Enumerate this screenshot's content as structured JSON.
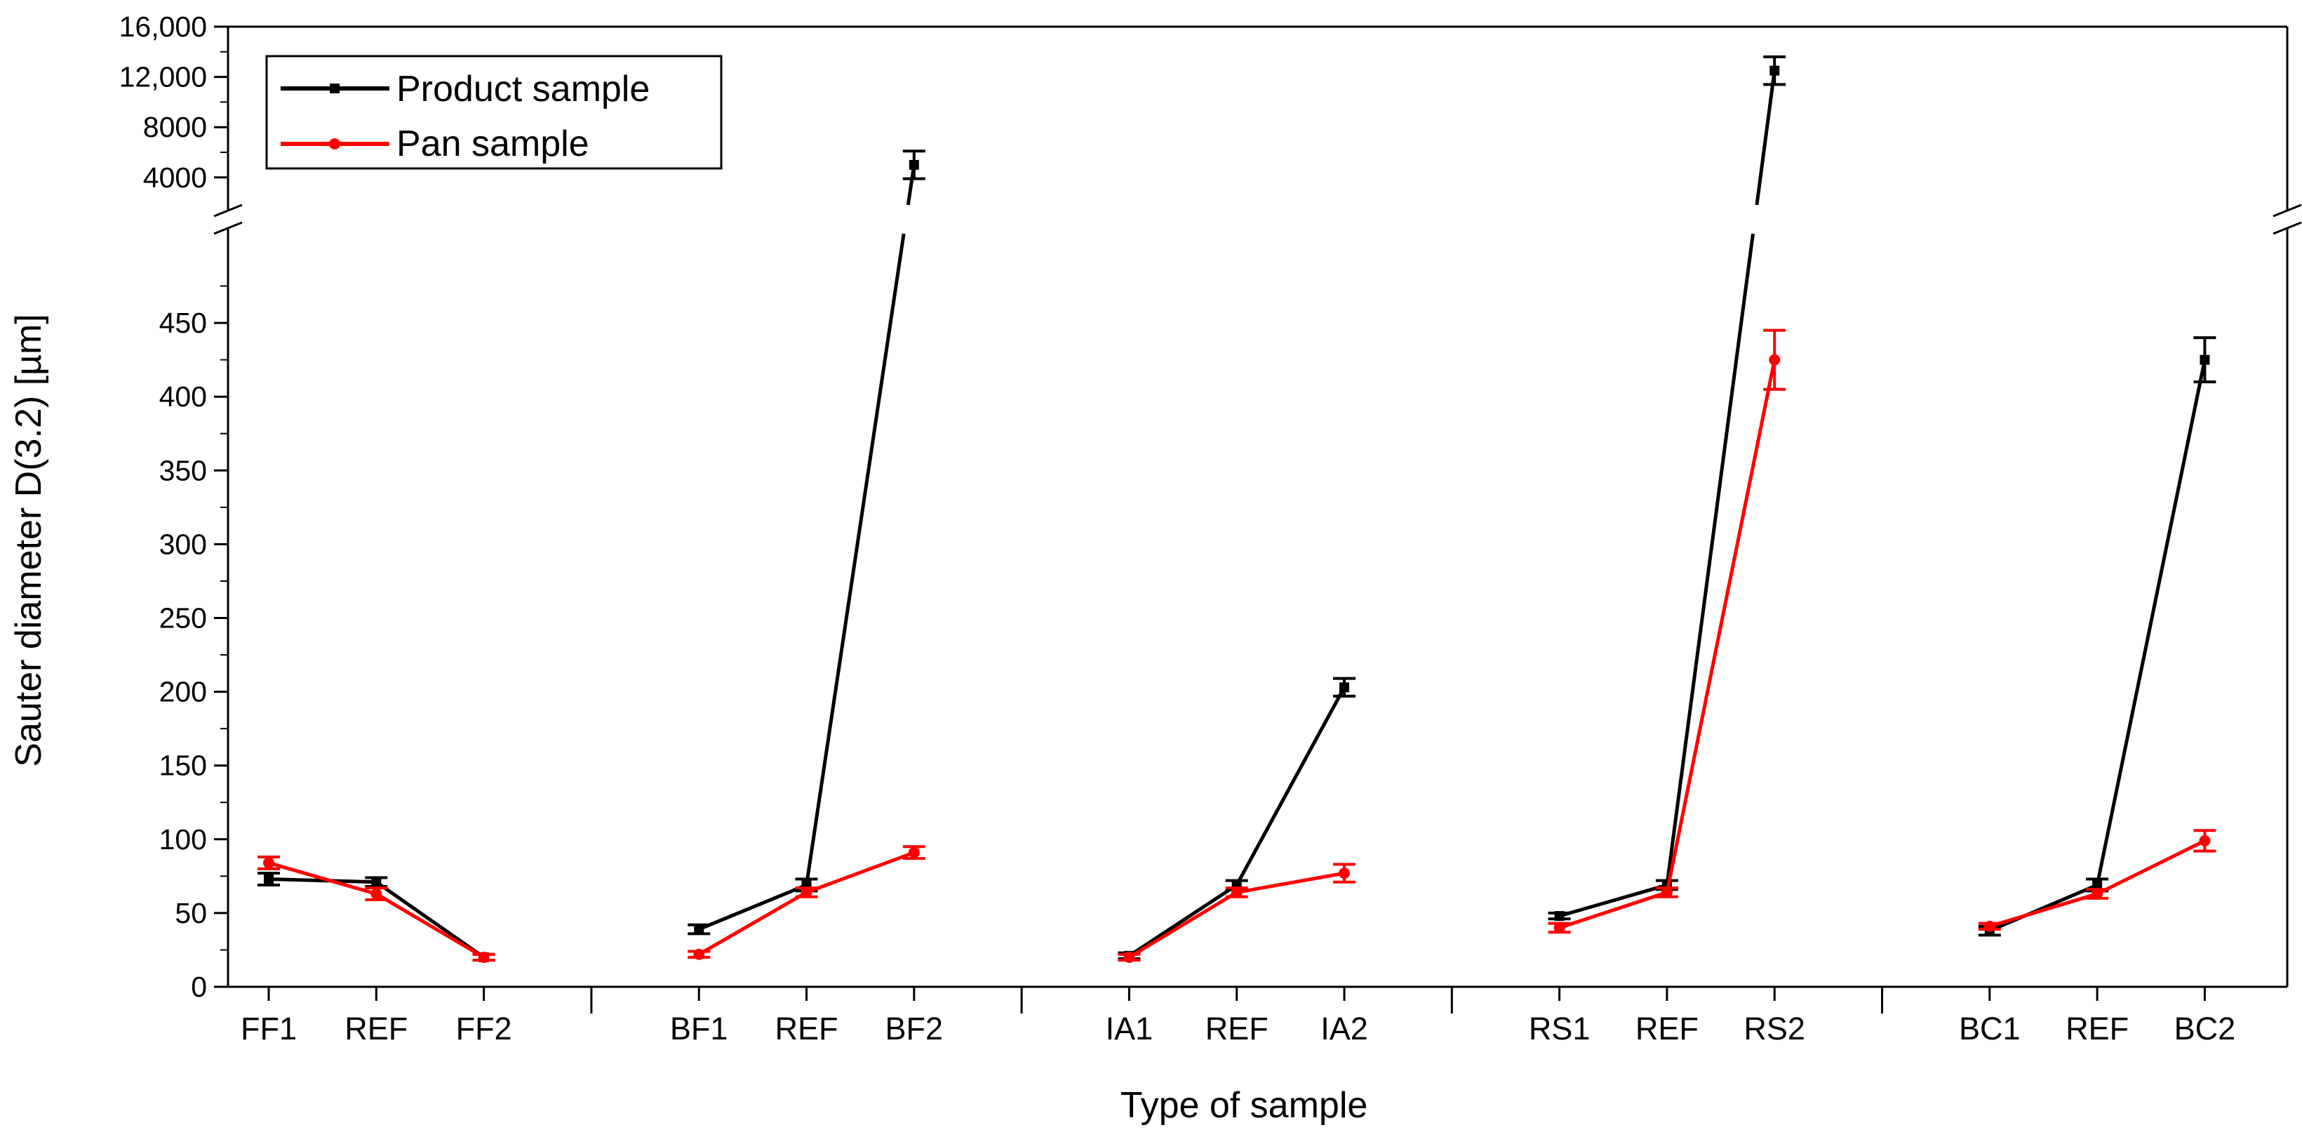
{
  "chart_data": {
    "type": "line",
    "xlabel": "Type of sample",
    "ylabel": "Sauter diameter D(3.2) [µm]",
    "groups": [
      {
        "name": "FF",
        "categories": [
          "FF1",
          "REF",
          "FF2"
        ]
      },
      {
        "name": "BF",
        "categories": [
          "BF1",
          "REF",
          "BF2"
        ]
      },
      {
        "name": "IA",
        "categories": [
          "IA1",
          "REF",
          "IA2"
        ]
      },
      {
        "name": "RS",
        "categories": [
          "RS1",
          "REF",
          "RS2"
        ]
      },
      {
        "name": "BC",
        "categories": [
          "BC1",
          "REF",
          "BC2"
        ]
      }
    ],
    "y_lower": {
      "min": 0,
      "max": 500,
      "ticks": [
        0,
        50,
        100,
        150,
        200,
        250,
        300,
        350,
        400,
        450
      ],
      "tick_labels": [
        "0",
        "50",
        "100",
        "150",
        "200",
        "250",
        "300",
        "350",
        "400",
        "450"
      ]
    },
    "y_upper": {
      "min": 2200,
      "max": 16000,
      "ticks": [
        4000,
        8000,
        12000,
        16000
      ],
      "tick_labels": [
        "4000",
        "8000",
        "12,000",
        "16,000"
      ]
    },
    "axis_break": true,
    "series": [
      {
        "name": "Product sample",
        "color": "#000000",
        "marker": "square",
        "values": [
          [
            73,
            71,
            20
          ],
          [
            39,
            69,
            5000
          ],
          [
            21,
            69,
            203
          ],
          [
            48,
            69,
            12500
          ],
          [
            38,
            69,
            425
          ]
        ],
        "errors": [
          [
            4,
            3,
            2
          ],
          [
            3,
            4,
            1100
          ],
          [
            2,
            3,
            6
          ],
          [
            2,
            3,
            1100
          ],
          [
            3,
            4,
            15
          ]
        ]
      },
      {
        "name": "Pan sample",
        "color": "#ff0000",
        "marker": "circle",
        "values": [
          [
            84,
            63,
            20
          ],
          [
            22,
            64,
            91
          ],
          [
            20,
            64,
            77
          ],
          [
            40,
            64,
            425
          ],
          [
            41,
            63,
            99
          ]
        ],
        "errors": [
          [
            4,
            4,
            2
          ],
          [
            2,
            3,
            4
          ],
          [
            2,
            3,
            6
          ],
          [
            3,
            3,
            20
          ],
          [
            2,
            3,
            7
          ]
        ]
      }
    ],
    "legend_position": "top-left"
  }
}
